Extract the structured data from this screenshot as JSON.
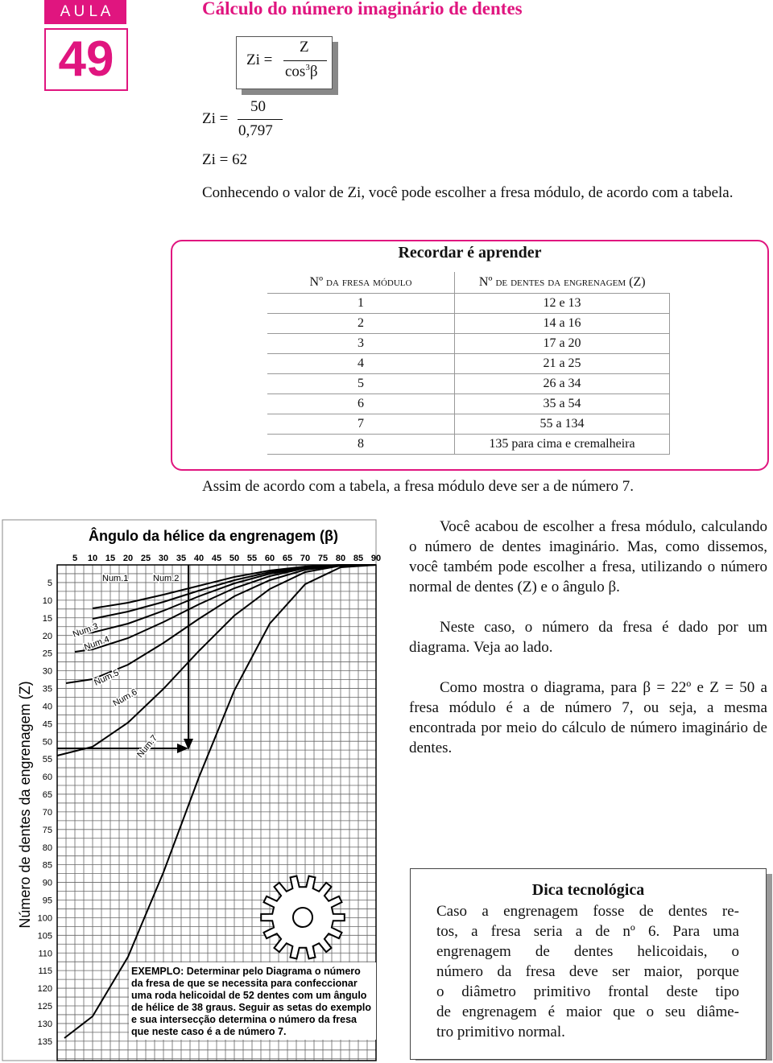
{
  "header": {
    "aula": "A U L A",
    "number": "49",
    "title": "Cálculo do número imaginário de dentes"
  },
  "formula": {
    "lhs": "Zi =",
    "numerator": "Z",
    "denominator": "cos",
    "exponent": "3",
    "angle": "β"
  },
  "calculation": {
    "lhs": "Zi =",
    "numerator": "50",
    "denominator": "0,797",
    "result": "Zi = 62"
  },
  "paragraphs": [
    "Conhecendo o valor de Zi, você pode escolher a fresa módulo, de acordo com a tabela.",
    "Assim de acordo com a tabela, a fresa módulo deve ser a de número 7."
  ],
  "table": {
    "title": "Recordar é aprender",
    "columns": [
      "Nº da fresa módulo",
      "Nº de dentes da engrenagem (Z)"
    ],
    "rows": [
      [
        "1",
        "12 e 13"
      ],
      [
        "2",
        "14 a 16"
      ],
      [
        "3",
        "17 a 20"
      ],
      [
        "4",
        "21 a 25"
      ],
      [
        "5",
        "26 a 34"
      ],
      [
        "6",
        "35 a 54"
      ],
      [
        "7",
        "55 a 134"
      ],
      [
        "8",
        "135 para cima e cremalheira"
      ]
    ]
  },
  "diagram": {
    "title": "Ângulo da hélice da engrenagem (β)",
    "y_label": "Número de dentes da engrenagem (Z)",
    "x_ticks": [
      "5",
      "10",
      "15",
      "20",
      "25",
      "30",
      "35",
      "40",
      "45",
      "50",
      "55",
      "60",
      "65",
      "70",
      "75",
      "80",
      "85",
      "90"
    ],
    "y_ticks": [
      "5",
      "10",
      "15",
      "20",
      "25",
      "30",
      "35",
      "40",
      "45",
      "50",
      "55",
      "60",
      "65",
      "70",
      "75",
      "80",
      "85",
      "90",
      "95",
      "100",
      "105",
      "110",
      "115",
      "120",
      "125",
      "130",
      "135"
    ],
    "curve_labels": [
      "Num.1",
      "Num.2",
      "Num.3",
      "Num.4",
      "Num.5",
      "Num.6",
      "Num.7"
    ],
    "example": [
      "EXEMPLO: Determinar pelo Diagrama o número",
      "da fresa de que se necessita para confeccionar",
      "uma roda helicoidal de 52 dentes com um ângulo",
      "de hélice de 38 graus. Seguir as setas do exemplo",
      "e sua intersecção determina o número da fresa",
      "que neste caso é a de número 7."
    ]
  },
  "side_text": [
    "Você acabou de escolher a fresa módulo, calculando o número de dentes imaginário. Mas, como dissemos, você também pode escolher a fresa, utilizando o número normal de dentes (Z) e o ângulo β.",
    "Neste caso, o número da fresa é dado por um diagrama. Veja ao lado.",
    "Como mostra o diagrama, para β = 22º e Z = 50 a fresa módulo é a de número 7, ou seja, a mesma encontrada por meio do cálculo de número imaginário de dentes."
  ],
  "tip": {
    "title": "Dica tecnológica",
    "lines": [
      "Caso a engrenagem fosse de dentes re-",
      "tos, a fresa seria a de nº 6. Para uma",
      "engrenagem de dentes helicoidais, o",
      "número da fresa deve ser maior, porque",
      "o diâmetro primitivo frontal deste tipo",
      "de engrenagem é maior que o seu diâme-",
      "tro primitivo normal."
    ]
  }
}
